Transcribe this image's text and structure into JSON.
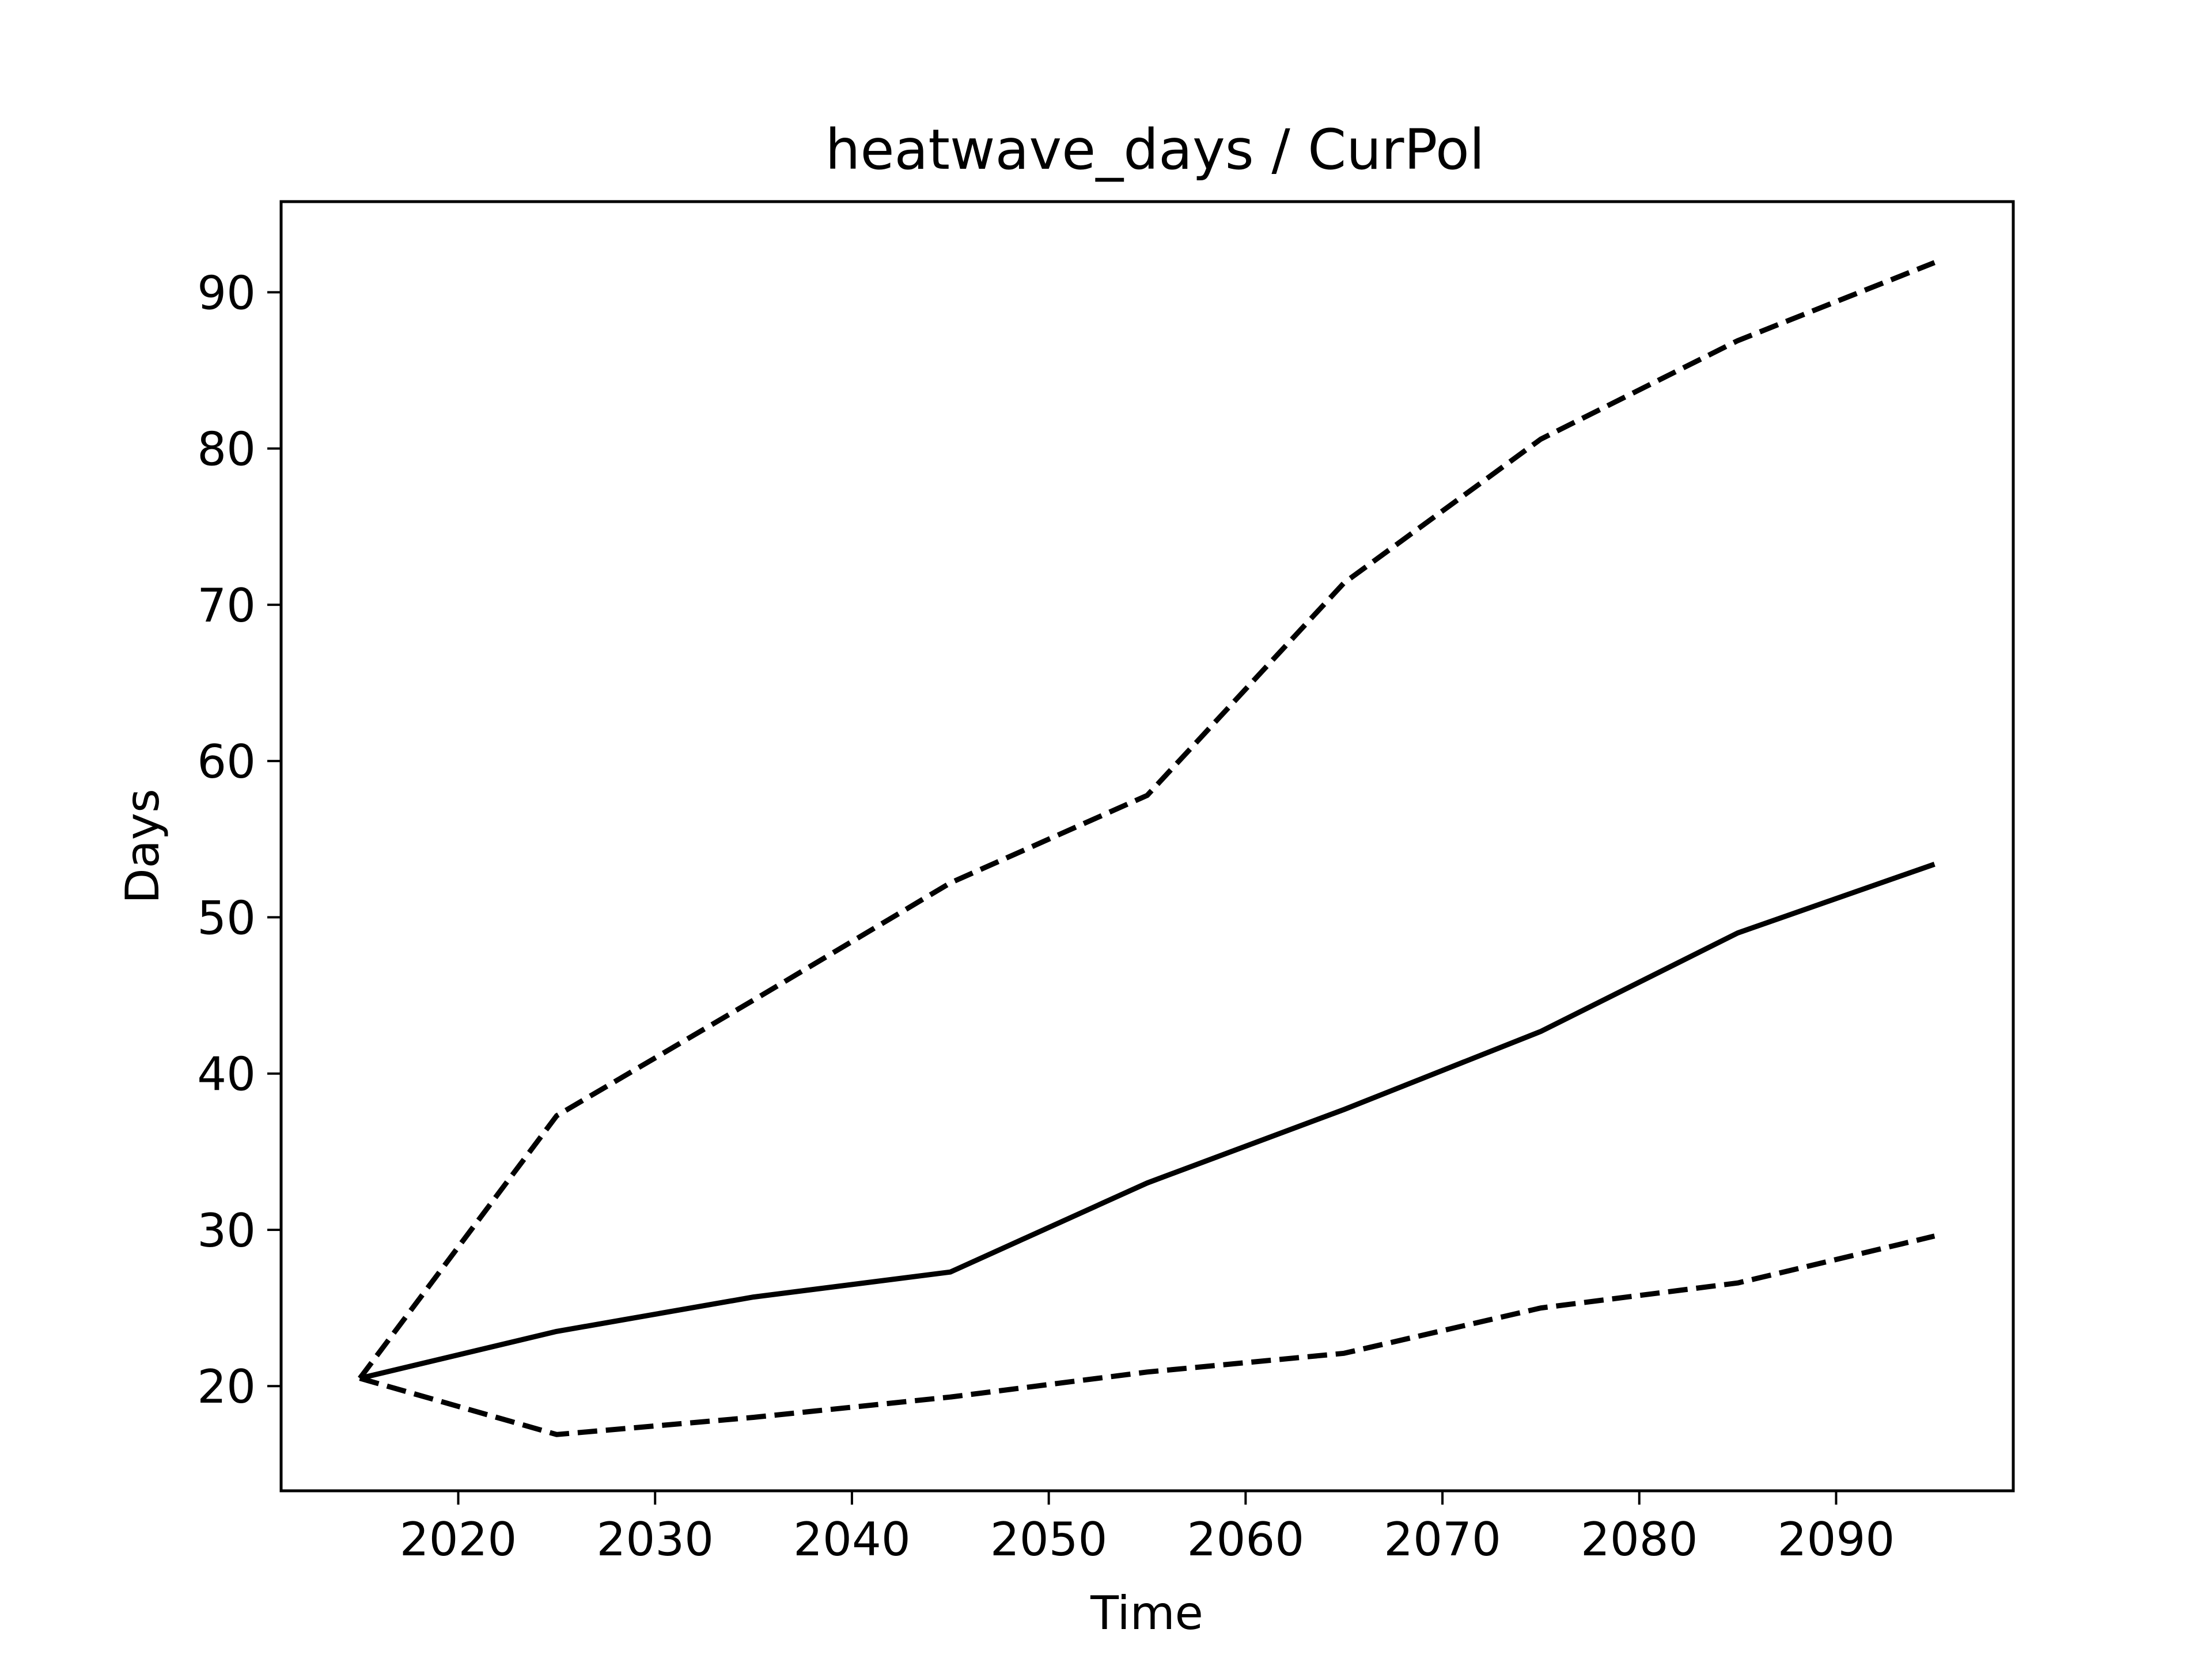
{
  "chart_data": {
    "type": "line",
    "title": "heatwave_days / CurPol",
    "xlabel": "Time",
    "ylabel": "Days",
    "xlim": [
      2011,
      2099
    ],
    "ylim": [
      13.3,
      95.8
    ],
    "x_ticks": [
      2020,
      2030,
      2040,
      2050,
      2060,
      2070,
      2080,
      2090
    ],
    "y_ticks": [
      20,
      30,
      40,
      50,
      60,
      70,
      80,
      90
    ],
    "grid": false,
    "legend": "none",
    "color": "#000000",
    "x": [
      2015,
      2025,
      2035,
      2045,
      2055,
      2065,
      2075,
      2085,
      2095
    ],
    "series": [
      {
        "style": "solid",
        "values": [
          20.5,
          23.5,
          25.7,
          27.3,
          33.0,
          37.7,
          42.7,
          49.0,
          53.4
        ]
      },
      {
        "style": "dashed",
        "values": [
          20.5,
          37.3,
          44.7,
          52.2,
          57.8,
          71.4,
          80.6,
          86.9,
          91.9
        ]
      },
      {
        "style": "dashed",
        "values": [
          20.5,
          16.9,
          18.0,
          19.3,
          20.9,
          22.1,
          25.0,
          26.6,
          29.6
        ]
      }
    ]
  }
}
